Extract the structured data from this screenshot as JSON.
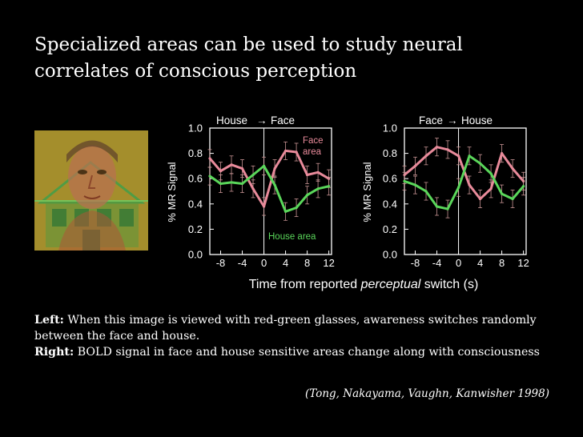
{
  "slide": {
    "title_line1": "Specialized areas can be used to study neural",
    "title_line2": "correlates of conscious perception",
    "caption_left_label": "Left:",
    "caption_left_text": " When this image is viewed with red-green glasses, awareness switches randomly between the face and house.",
    "caption_right_label": "Right:",
    "caption_right_text": " BOLD signal in face and house sensitive areas change along with consciousness",
    "citation": "(Tong, Nakayama, Vaughn, Kanwisher 1998)"
  },
  "colors": {
    "background": "#000000",
    "face_series": "#e88a9a",
    "house_series": "#5ad65a",
    "axis": "#ffffff",
    "error_bars": "#d09a9a"
  },
  "shared_xlabel_prefix": "Time from reported ",
  "shared_xlabel_italic": "perceptual",
  "shared_xlabel_suffix": " switch (s)",
  "chart_data": [
    {
      "type": "line",
      "title_left": "House",
      "title_arrow": "→",
      "title_right": "Face",
      "ylabel": "% MR Signal",
      "xlim": [
        -10,
        12.5
      ],
      "ylim": [
        0.0,
        1.0
      ],
      "x_ticks": [
        -8,
        -4,
        0,
        4,
        8,
        12
      ],
      "y_ticks": [
        "0.0",
        "0.2",
        "0.4",
        "0.6",
        "0.8",
        "1.0"
      ],
      "x": [
        -10,
        -8,
        -6,
        -4,
        -2,
        0,
        2,
        4,
        6,
        8,
        10,
        12
      ],
      "series": [
        {
          "name": "Face area",
          "color": "#e88a9a",
          "values": [
            0.76,
            0.66,
            0.71,
            0.68,
            0.52,
            0.38,
            0.68,
            0.82,
            0.81,
            0.63,
            0.65,
            0.6
          ],
          "err": 0.07
        },
        {
          "name": "House area",
          "color": "#5ad65a",
          "values": [
            0.62,
            0.56,
            0.57,
            0.56,
            0.63,
            0.7,
            0.55,
            0.34,
            0.37,
            0.47,
            0.52,
            0.54
          ],
          "err": 0.07
        }
      ],
      "annotation_face_line1": "Face",
      "annotation_face_line2": "area",
      "annotation_house": "House area"
    },
    {
      "type": "line",
      "title_left": "Face",
      "title_arrow": "→",
      "title_right": "House",
      "ylabel": "% MR Signal",
      "xlim": [
        -10,
        12.5
      ],
      "ylim": [
        0.0,
        1.0
      ],
      "x_ticks": [
        -8,
        -4,
        0,
        4,
        8,
        12
      ],
      "y_ticks": [
        "0.0",
        "0.2",
        "0.4",
        "0.6",
        "0.8",
        "1.0"
      ],
      "x": [
        -10,
        -8,
        -6,
        -4,
        -2,
        0,
        2,
        4,
        6,
        8,
        10,
        12
      ],
      "series": [
        {
          "name": "Face area",
          "color": "#e88a9a",
          "values": [
            0.63,
            0.7,
            0.78,
            0.85,
            0.83,
            0.78,
            0.55,
            0.44,
            0.52,
            0.8,
            0.68,
            0.58
          ],
          "err": 0.07
        },
        {
          "name": "House area",
          "color": "#5ad65a",
          "values": [
            0.58,
            0.55,
            0.5,
            0.38,
            0.36,
            0.53,
            0.78,
            0.72,
            0.64,
            0.48,
            0.44,
            0.54
          ],
          "err": 0.07
        }
      ]
    }
  ]
}
